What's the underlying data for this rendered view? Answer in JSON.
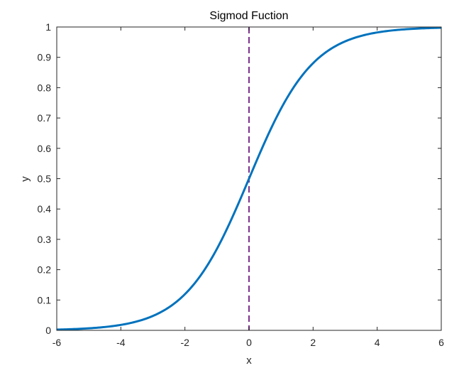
{
  "chart_data": {
    "type": "line",
    "title": "Sigmod Fuction",
    "xlabel": "x",
    "ylabel": "y",
    "xlim": [
      -6,
      6
    ],
    "ylim": [
      0,
      1
    ],
    "xticks": [
      -6,
      -4,
      -2,
      0,
      2,
      4,
      6
    ],
    "yticks": [
      0,
      0.1,
      0.2,
      0.3,
      0.4,
      0.5,
      0.6,
      0.7,
      0.8,
      0.9,
      1
    ],
    "grid": false,
    "series": [
      {
        "function": "sigmoid",
        "color": "#0072BD",
        "x": [
          -6,
          -5.5,
          -5,
          -4.5,
          -4,
          -3.5,
          -3,
          -2.5,
          -2,
          -1.5,
          -1,
          -0.5,
          0,
          0.5,
          1,
          1.5,
          2,
          2.5,
          3,
          3.5,
          4,
          4.5,
          5,
          5.5,
          6
        ],
        "y": [
          0.0025,
          0.0041,
          0.0067,
          0.011,
          0.018,
          0.0293,
          0.0474,
          0.0759,
          0.1192,
          0.1824,
          0.2689,
          0.3775,
          0.5,
          0.6225,
          0.7311,
          0.8176,
          0.8808,
          0.9241,
          0.9526,
          0.9707,
          0.982,
          0.989,
          0.9933,
          0.9959,
          0.9975
        ]
      }
    ],
    "reference_lines": [
      {
        "orientation": "vertical",
        "x": 0,
        "style": "dashed",
        "color": "#7E2F8E"
      }
    ]
  }
}
